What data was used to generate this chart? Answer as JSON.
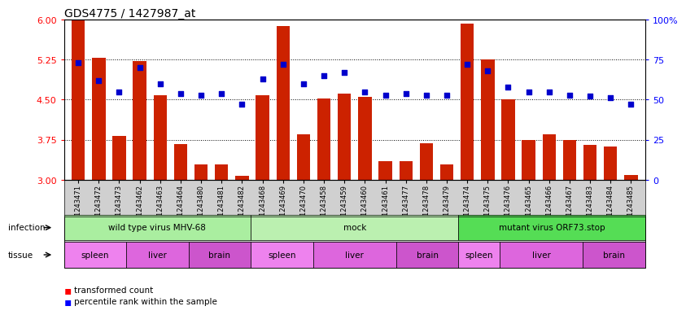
{
  "title": "GDS4775 / 1427987_at",
  "samples": [
    "GSM1243471",
    "GSM1243472",
    "GSM1243473",
    "GSM1243462",
    "GSM1243463",
    "GSM1243464",
    "GSM1243480",
    "GSM1243481",
    "GSM1243482",
    "GSM1243468",
    "GSM1243469",
    "GSM1243470",
    "GSM1243458",
    "GSM1243459",
    "GSM1243460",
    "GSM1243461",
    "GSM1243477",
    "GSM1243478",
    "GSM1243479",
    "GSM1243474",
    "GSM1243475",
    "GSM1243476",
    "GSM1243465",
    "GSM1243466",
    "GSM1243467",
    "GSM1243483",
    "GSM1243484",
    "GSM1243485"
  ],
  "bar_values": [
    6.0,
    5.28,
    3.82,
    5.22,
    4.58,
    3.67,
    3.28,
    3.28,
    3.07,
    4.58,
    5.88,
    3.85,
    4.52,
    4.62,
    4.55,
    3.35,
    3.35,
    3.68,
    3.28,
    5.92,
    5.25,
    4.5,
    3.75,
    3.85,
    3.75,
    3.65,
    3.62,
    3.08
  ],
  "percentile_values": [
    73,
    62,
    55,
    70,
    60,
    54,
    53,
    54,
    47,
    63,
    72,
    60,
    65,
    67,
    55,
    53,
    54,
    53,
    53,
    72,
    68,
    58,
    55,
    55,
    53,
    52,
    51,
    47
  ],
  "infection_groups": [
    {
      "label": "wild type virus MHV-68",
      "start": 0,
      "end": 9,
      "color": "#aaeea0"
    },
    {
      "label": "mock",
      "start": 9,
      "end": 19,
      "color": "#bbf0b0"
    },
    {
      "label": "mutant virus ORF73.stop",
      "start": 19,
      "end": 28,
      "color": "#55dd55"
    }
  ],
  "tissue_groups": [
    {
      "label": "spleen",
      "start": 0,
      "end": 3,
      "color": "#ee82ee"
    },
    {
      "label": "liver",
      "start": 3,
      "end": 6,
      "color": "#dd66dd"
    },
    {
      "label": "brain",
      "start": 6,
      "end": 9,
      "color": "#cc55cc"
    },
    {
      "label": "spleen",
      "start": 9,
      "end": 12,
      "color": "#ee82ee"
    },
    {
      "label": "liver",
      "start": 12,
      "end": 16,
      "color": "#dd66dd"
    },
    {
      "label": "brain",
      "start": 16,
      "end": 19,
      "color": "#cc55cc"
    },
    {
      "label": "spleen",
      "start": 19,
      "end": 21,
      "color": "#ee82ee"
    },
    {
      "label": "liver",
      "start": 21,
      "end": 25,
      "color": "#dd66dd"
    },
    {
      "label": "brain",
      "start": 25,
      "end": 28,
      "color": "#cc55cc"
    }
  ],
  "ylim_left": [
    3.0,
    6.0
  ],
  "ylim_right": [
    0,
    100
  ],
  "yticks_left": [
    3.0,
    3.75,
    4.5,
    5.25,
    6.0
  ],
  "yticks_right": [
    0,
    25,
    50,
    75,
    100
  ],
  "ytick_labels_right": [
    "0",
    "25",
    "50",
    "75",
    "100%"
  ],
  "bar_color": "#cc2200",
  "dot_color": "#0000cc",
  "background_color": "#ffffff"
}
